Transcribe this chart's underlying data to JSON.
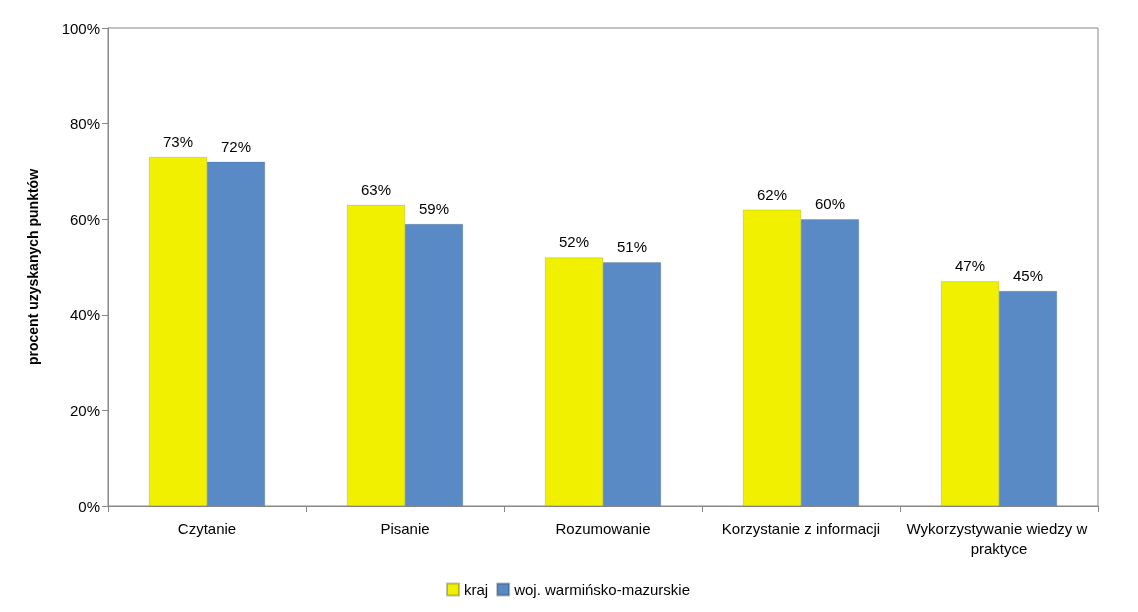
{
  "chart_data": {
    "type": "bar",
    "ylabel": "procent uzyskanych punktów",
    "categories": [
      "Czytanie",
      "Pisanie",
      "Rozumowanie",
      "Korzystanie z informacji",
      "Wykorzystywanie wiedzy w praktyce"
    ],
    "series": [
      {
        "name": "kraj",
        "color": "#f0f000",
        "values": [
          73,
          63,
          52,
          62,
          47
        ],
        "value_labels": [
          "73%",
          "63%",
          "52%",
          "62%",
          "47%"
        ]
      },
      {
        "name": "woj. warmińsko-mazurskie",
        "color": "#5a8ac6",
        "values": [
          72,
          59,
          51,
          60,
          45
        ],
        "value_labels": [
          "72%",
          "59%",
          "51%",
          "60%",
          "45%"
        ]
      }
    ],
    "ylim": [
      0,
      100
    ],
    "yticks": [
      {
        "value": 0,
        "label": "0%"
      },
      {
        "value": 20,
        "label": "20%"
      },
      {
        "value": 40,
        "label": "40%"
      },
      {
        "value": 60,
        "label": "60%"
      },
      {
        "value": 80,
        "label": "80%"
      },
      {
        "value": 100,
        "label": "100%"
      }
    ],
    "grid": false,
    "legend": "bottom"
  }
}
